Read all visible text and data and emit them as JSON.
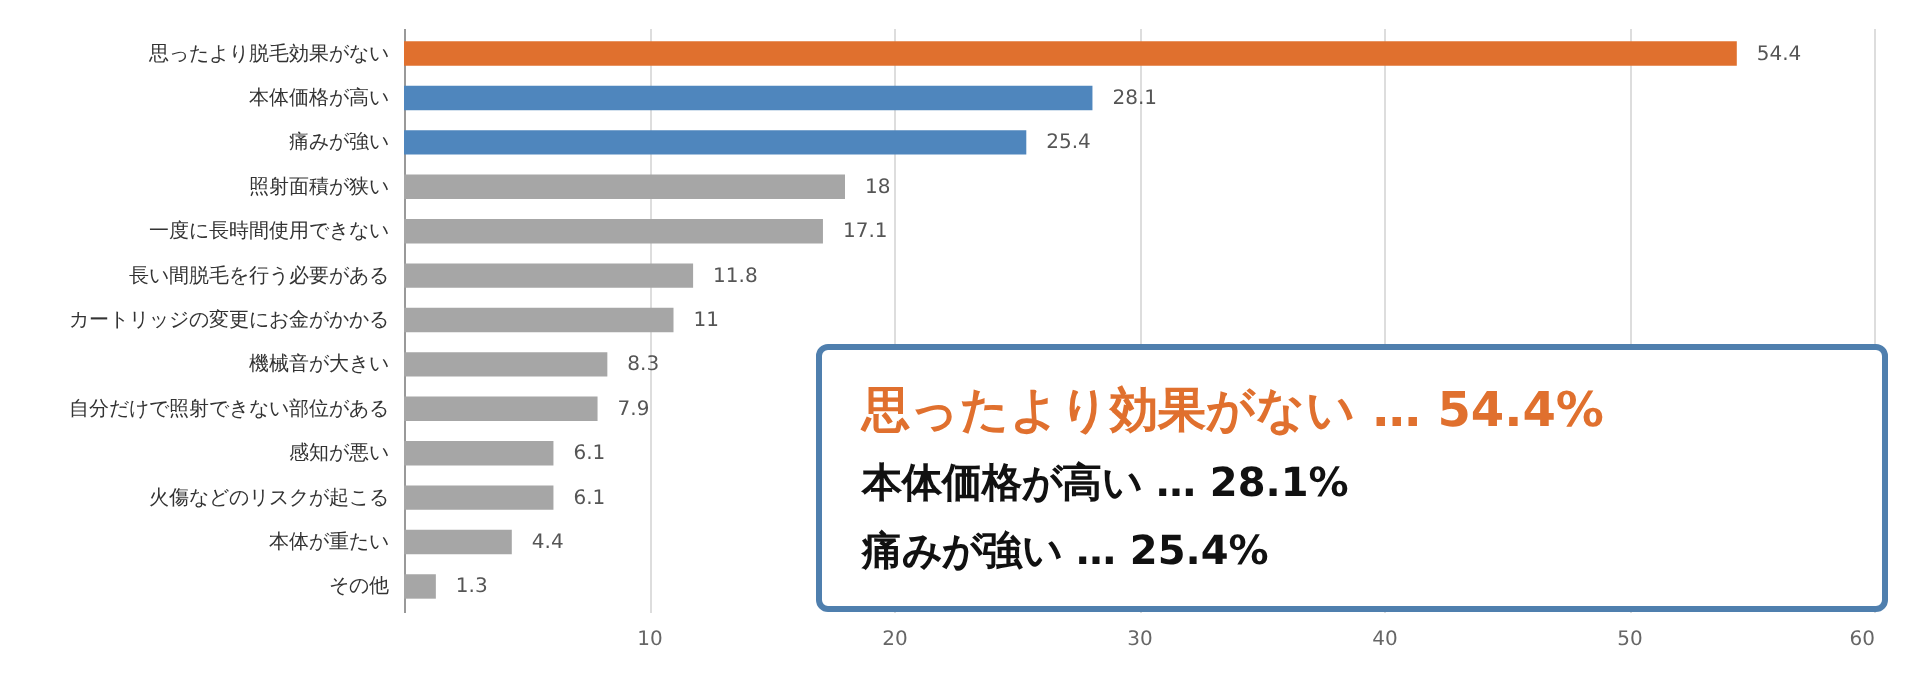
{
  "chart_data": {
    "type": "bar",
    "orientation": "horizontal",
    "categories": [
      "思ったより脱毛効果がない",
      "本体価格が高い",
      "痛みが強い",
      "照射面積が狭い",
      "一度に長時間使用できない",
      "長い間脱毛を行う必要がある",
      "カートリッジの変更にお金がかかる",
      "機械音が大きい",
      "自分だけで照射できない部位がある",
      "感知が悪い",
      "火傷などのリスクが起こる",
      "本体が重たい",
      "その他"
    ],
    "values": [
      54.4,
      28.1,
      25.4,
      18,
      17.1,
      11.8,
      11,
      8.3,
      7.9,
      6.1,
      6.1,
      4.4,
      1.3
    ],
    "colors": [
      "#e0702e",
      "#4f86bd",
      "#4f86bd",
      "#a6a6a6",
      "#a6a6a6",
      "#a6a6a6",
      "#a6a6a6",
      "#a6a6a6",
      "#a6a6a6",
      "#a6a6a6",
      "#a6a6a6",
      "#a6a6a6",
      "#a6a6a6"
    ],
    "xlim": [
      0,
      60
    ],
    "xticks": [
      10,
      20,
      30,
      40,
      50,
      60
    ],
    "grid": "x",
    "data_labels": true,
    "annotations": [
      "思ったより効果がない … 54.4%",
      "本体価格が高い … 28.1%",
      "痛みが強い … 25.4%"
    ]
  }
}
